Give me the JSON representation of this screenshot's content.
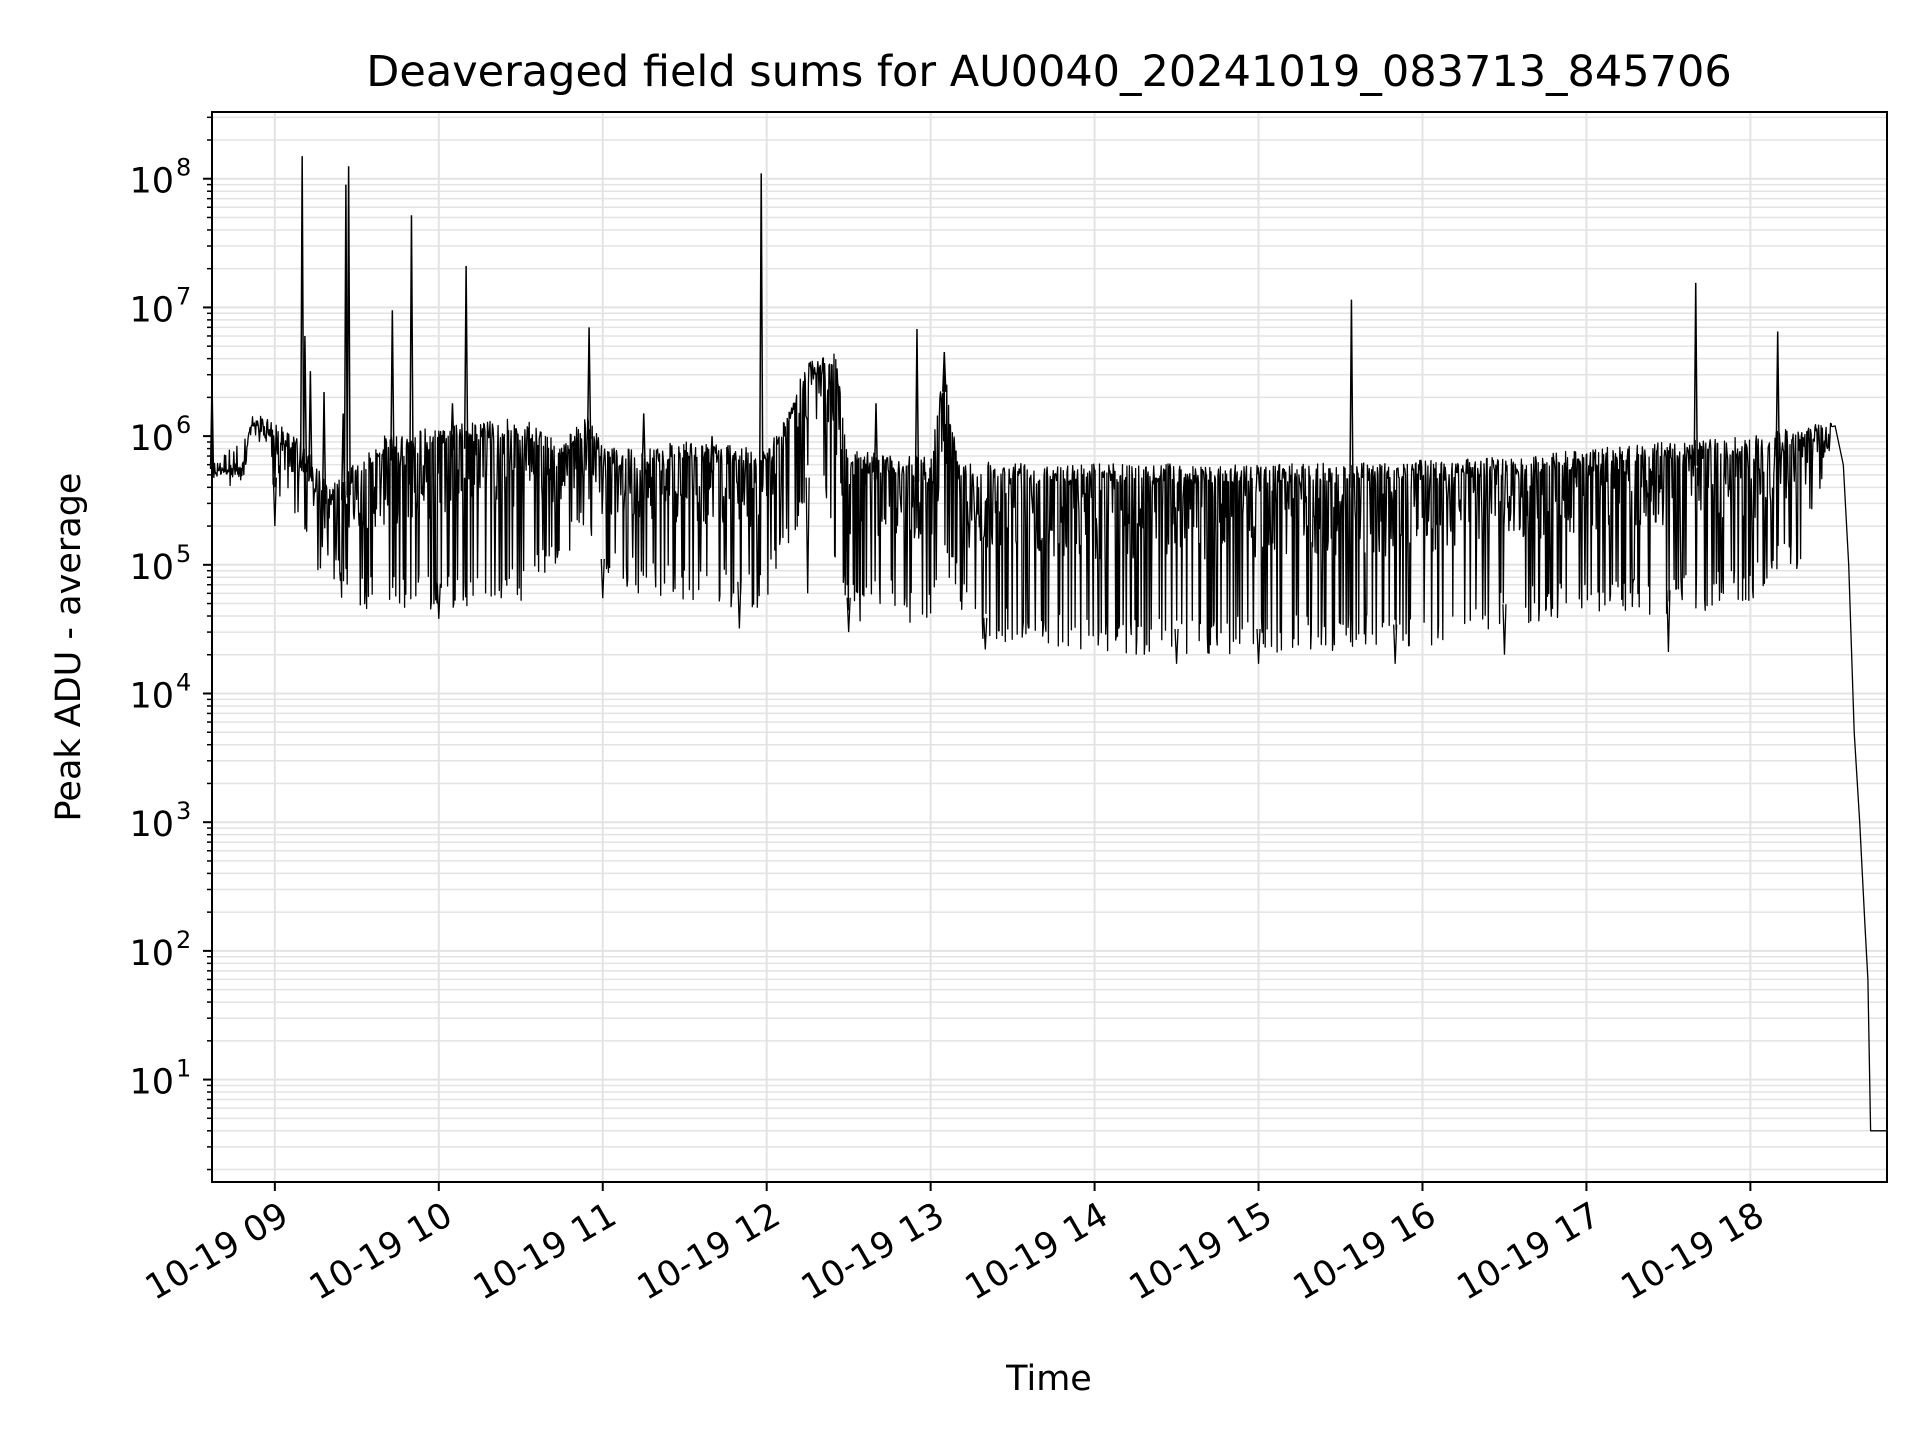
{
  "chart_data": {
    "type": "line",
    "title": "Deaveraged field sums for AU0040_20241019_083713_845706",
    "xlabel": "Time",
    "ylabel": "Peak ADU - average",
    "y_scale": "log",
    "ylim": [
      1.6,
      330000000.0
    ],
    "xlim": [
      "2024-10-19 08:37",
      "2024-10-19 18:50"
    ],
    "grid": "both",
    "line_color": "#000000",
    "x_ticks": [
      {
        "t": "2024-10-19 09:00",
        "label": "10-19 09"
      },
      {
        "t": "2024-10-19 10:00",
        "label": "10-19 10"
      },
      {
        "t": "2024-10-19 11:00",
        "label": "10-19 11"
      },
      {
        "t": "2024-10-19 12:00",
        "label": "10-19 12"
      },
      {
        "t": "2024-10-19 13:00",
        "label": "10-19 13"
      },
      {
        "t": "2024-10-19 14:00",
        "label": "10-19 14"
      },
      {
        "t": "2024-10-19 15:00",
        "label": "10-19 15"
      },
      {
        "t": "2024-10-19 16:00",
        "label": "10-19 16"
      },
      {
        "t": "2024-10-19 17:00",
        "label": "10-19 17"
      },
      {
        "t": "2024-10-19 18:00",
        "label": "10-19 18"
      }
    ],
    "y_ticks": [
      {
        "value": 10,
        "base": "10",
        "exp": "1"
      },
      {
        "value": 100,
        "base": "10",
        "exp": "2"
      },
      {
        "value": 1000,
        "base": "10",
        "exp": "3"
      },
      {
        "value": 10000,
        "base": "10",
        "exp": "4"
      },
      {
        "value": 100000,
        "base": "10",
        "exp": "5"
      },
      {
        "value": 1000000,
        "base": "10",
        "exp": "6"
      },
      {
        "value": 10000000,
        "base": "10",
        "exp": "7"
      },
      {
        "value": 100000000,
        "base": "10",
        "exp": "8"
      }
    ],
    "series": [
      {
        "envelope": [
          {
            "t": "2024-10-19 08:37",
            "high": 650000,
            "low": 350000
          },
          {
            "t": "2024-10-19 08:48",
            "high": 600000,
            "low": 450000
          },
          {
            "t": "2024-10-19 08:52",
            "high": 1500000,
            "low": 900000
          },
          {
            "t": "2024-10-19 09:00",
            "high": 1300000,
            "low": 300000
          },
          {
            "t": "2024-10-19 09:10",
            "high": 900000,
            "low": 150000
          },
          {
            "t": "2024-10-19 09:20",
            "high": 400000,
            "low": 60000
          },
          {
            "t": "2024-10-19 09:40",
            "high": 1000000,
            "low": 40000
          },
          {
            "t": "2024-10-19 10:00",
            "high": 1200000,
            "low": 45000
          },
          {
            "t": "2024-10-19 10:30",
            "high": 1400000,
            "low": 50000
          },
          {
            "t": "2024-10-19 10:45",
            "high": 900000,
            "low": 100000
          },
          {
            "t": "2024-10-19 10:55",
            "high": 1500000,
            "low": 200000
          },
          {
            "t": "2024-10-19 11:00",
            "high": 800000,
            "low": 70000
          },
          {
            "t": "2024-10-19 11:30",
            "high": 900000,
            "low": 50000
          },
          {
            "t": "2024-10-19 12:00",
            "high": 800000,
            "low": 45000
          },
          {
            "t": "2024-10-19 12:05",
            "high": 1200000,
            "low": 100000
          },
          {
            "t": "2024-10-19 12:15",
            "high": 4000000,
            "low": 300000
          },
          {
            "t": "2024-10-19 12:20",
            "high": 4200000,
            "low": 400000
          },
          {
            "t": "2024-10-19 12:25",
            "high": 4500000,
            "low": 100000
          },
          {
            "t": "2024-10-19 12:30",
            "high": 800000,
            "low": 35000
          },
          {
            "t": "2024-10-19 12:45",
            "high": 700000,
            "low": 40000
          },
          {
            "t": "2024-10-19 13:00",
            "high": 700000,
            "low": 30000
          },
          {
            "t": "2024-10-19 13:05",
            "high": 3500000,
            "low": 80000
          },
          {
            "t": "2024-10-19 13:10",
            "high": 700000,
            "low": 50000
          },
          {
            "t": "2024-10-19 13:15",
            "high": 650000,
            "low": 25000
          },
          {
            "t": "2024-10-19 14:00",
            "high": 620000,
            "low": 20000
          },
          {
            "t": "2024-10-19 15:00",
            "high": 600000,
            "low": 20000
          },
          {
            "t": "2024-10-19 16:00",
            "high": 650000,
            "low": 22000
          },
          {
            "t": "2024-10-19 16:40",
            "high": 700000,
            "low": 35000
          },
          {
            "t": "2024-10-19 17:00",
            "high": 800000,
            "low": 40000
          },
          {
            "t": "2024-10-19 17:30",
            "high": 900000,
            "low": 40000
          },
          {
            "t": "2024-10-19 18:00",
            "high": 1000000,
            "low": 50000
          },
          {
            "t": "2024-10-19 18:20",
            "high": 1200000,
            "low": 100000
          },
          {
            "t": "2024-10-19 18:30",
            "high": 1300000,
            "low": 700000
          }
        ],
        "tail": [
          {
            "t": "2024-10-19 18:31",
            "value": 1200000
          },
          {
            "t": "2024-10-19 18:34",
            "value": 600000
          },
          {
            "t": "2024-10-19 18:36",
            "value": 100000
          },
          {
            "t": "2024-10-19 18:38",
            "value": 5000
          },
          {
            "t": "2024-10-19 18:40",
            "value": 1000
          },
          {
            "t": "2024-10-19 18:42",
            "value": 150
          },
          {
            "t": "2024-10-19 18:43",
            "value": 60
          },
          {
            "t": "2024-10-19 18:44",
            "value": 4
          },
          {
            "t": "2024-10-19 18:50",
            "value": 4
          }
        ],
        "spikes": [
          {
            "t": "2024-10-19 09:10",
            "value": 150000000
          },
          {
            "t": "2024-10-19 09:11",
            "value": 6000000
          },
          {
            "t": "2024-10-19 09:13",
            "value": 3200000
          },
          {
            "t": "2024-10-19 09:18",
            "value": 2200000
          },
          {
            "t": "2024-10-19 09:25",
            "value": 1500000
          },
          {
            "t": "2024-10-19 09:26",
            "value": 90000000
          },
          {
            "t": "2024-10-19 09:27",
            "value": 125000000
          },
          {
            "t": "2024-10-19 09:43",
            "value": 9500000
          },
          {
            "t": "2024-10-19 09:50",
            "value": 52000000
          },
          {
            "t": "2024-10-19 10:05",
            "value": 1800000
          },
          {
            "t": "2024-10-19 10:10",
            "value": 21000000
          },
          {
            "t": "2024-10-19 10:55",
            "value": 7000000
          },
          {
            "t": "2024-10-19 11:15",
            "value": 1500000
          },
          {
            "t": "2024-10-19 11:40",
            "value": 1000000
          },
          {
            "t": "2024-10-19 11:58",
            "value": 110000000
          },
          {
            "t": "2024-10-19 12:40",
            "value": 1800000
          },
          {
            "t": "2024-10-19 12:55",
            "value": 6800000
          },
          {
            "t": "2024-10-19 13:05",
            "value": 4500000
          },
          {
            "t": "2024-10-19 15:34",
            "value": 11500000
          },
          {
            "t": "2024-10-19 17:40",
            "value": 15500000
          },
          {
            "t": "2024-10-19 18:10",
            "value": 6500000
          }
        ],
        "dips": [
          {
            "t": "2024-10-19 08:37",
            "value": 3000000
          },
          {
            "t": "2024-10-19 09:00",
            "value": 200000
          },
          {
            "t": "2024-10-19 10:00",
            "value": 38000
          },
          {
            "t": "2024-10-19 11:00",
            "value": 55000
          },
          {
            "t": "2024-10-19 11:50",
            "value": 32000
          },
          {
            "t": "2024-10-19 12:15",
            "value": 60000
          },
          {
            "t": "2024-10-19 12:30",
            "value": 30000
          },
          {
            "t": "2024-10-19 13:20",
            "value": 22000
          },
          {
            "t": "2024-10-19 14:30",
            "value": 17000
          },
          {
            "t": "2024-10-19 15:00",
            "value": 17000
          },
          {
            "t": "2024-10-19 15:50",
            "value": 17000
          },
          {
            "t": "2024-10-19 16:30",
            "value": 20000
          },
          {
            "t": "2024-10-19 17:30",
            "value": 21000
          }
        ]
      }
    ]
  }
}
